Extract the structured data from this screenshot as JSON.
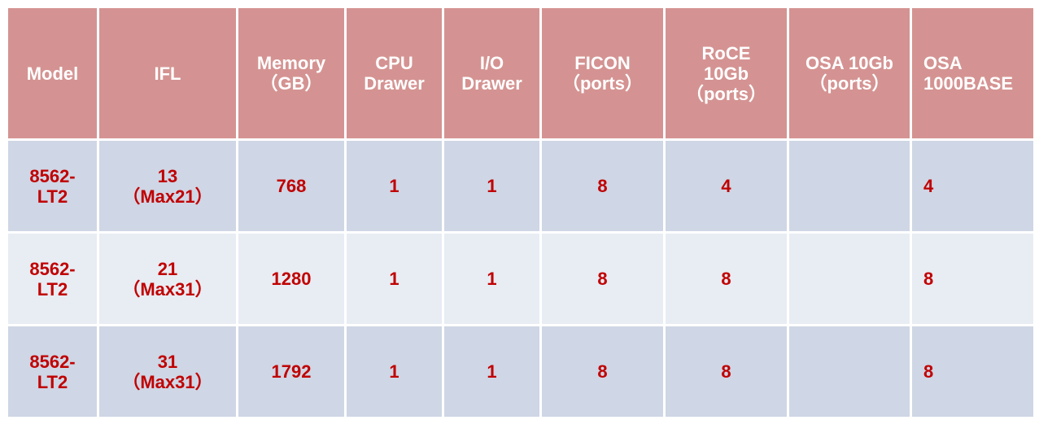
{
  "table": {
    "headers": [
      "Model",
      "IFL",
      "Memory\n（GB）",
      "CPU\nDrawer",
      "I/O\nDrawer",
      "FICON\n（ports）",
      "RoCE\n10Gb\n（ports）",
      "OSA 10Gb\n（ports）",
      "OSA\n1000BASE"
    ],
    "rows": [
      [
        "8562-\nLT2",
        "13\n（Max21）",
        "768",
        "1",
        "1",
        "8",
        "4",
        "",
        "4"
      ],
      [
        "8562-\nLT2",
        "21\n（Max31）",
        "1280",
        "1",
        "1",
        "8",
        "8",
        "",
        "8"
      ],
      [
        "8562-\nLT2",
        "31\n（Max31）",
        "1792",
        "1",
        "1",
        "8",
        "8",
        "",
        "8"
      ]
    ]
  },
  "colors": {
    "header_bg": "#d49392",
    "row_dark": "#cfd6e5",
    "row_light": "#e8ecf3",
    "cell_text": "#c00000",
    "header_text": "#ffffff"
  }
}
